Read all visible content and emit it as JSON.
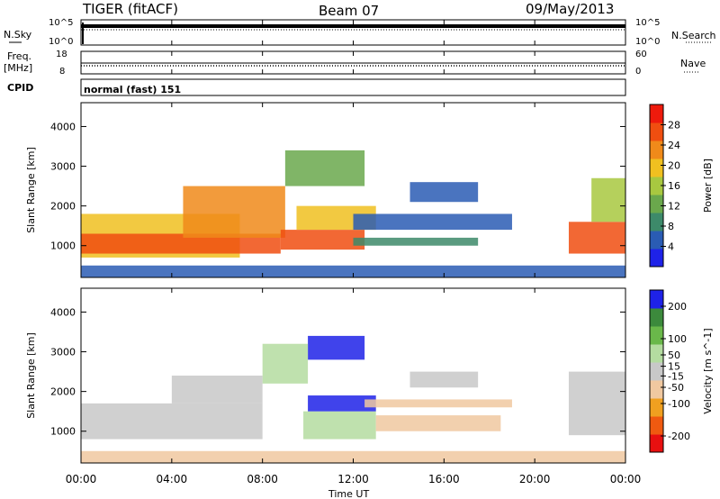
{
  "header": {
    "title": "TIGER (fitACF)",
    "beam": "Beam 07",
    "date": "09/May/2013"
  },
  "nsky_panel": {
    "left_label": "N.Sky",
    "right_label": "N.Search",
    "left_ticks": [
      "10^5",
      "10^0"
    ],
    "right_ticks": [
      "10^5",
      "10^0"
    ]
  },
  "freq_panel": {
    "left_label_1": "Freq.",
    "left_label_2": "[MHz]",
    "right_label": "Nave",
    "left_ticks": [
      "18",
      "8"
    ],
    "right_ticks": [
      "60",
      "0"
    ]
  },
  "cpid": {
    "label": "CPID",
    "value": "normal (fast) 151"
  },
  "x_axis": {
    "label": "Time UT",
    "ticks": [
      "00:00",
      "04:00",
      "08:00",
      "12:00",
      "16:00",
      "20:00",
      "00:00"
    ]
  },
  "colors": {
    "power": [
      "#1e22e8",
      "#2a5cb4",
      "#3d8a6a",
      "#6aa84c",
      "#a8c840",
      "#f0c020",
      "#f08a1a",
      "#f04e10",
      "#ee1a0c"
    ],
    "velocity": [
      "#e81010",
      "#f05a10",
      "#f0a020",
      "#f0c8a0",
      "#c8c8c8",
      "#b4dca0",
      "#6ab84a",
      "#3c8a3c",
      "#1e22e8"
    ]
  },
  "chart_data": [
    {
      "type": "heatmap",
      "title": "Power",
      "ylabel": "Slant Range [km]",
      "xlabel": "",
      "x_unit": "hours UT",
      "xlim": [
        0,
        24
      ],
      "ylim": [
        200,
        4600
      ],
      "y_ticks": [
        1000,
        2000,
        3000,
        4000
      ],
      "colorbar": {
        "label": "Power [dB]",
        "range": [
          0,
          32
        ],
        "ticks": [
          4,
          8,
          12,
          16,
          20,
          24,
          28
        ]
      },
      "regions": [
        {
          "x": [
            0.0,
            7.0
          ],
          "y": [
            700,
            1800
          ],
          "value": 18
        },
        {
          "x": [
            0.0,
            8.8
          ],
          "y": [
            800,
            1300
          ],
          "value": 26
        },
        {
          "x": [
            4.5,
            9.0
          ],
          "y": [
            1200,
            2500
          ],
          "value": 24
        },
        {
          "x": [
            8.8,
            12.5
          ],
          "y": [
            900,
            1400
          ],
          "value": 28
        },
        {
          "x": [
            9.5,
            13.0
          ],
          "y": [
            1400,
            2000
          ],
          "value": 18
        },
        {
          "x": [
            12.0,
            17.5
          ],
          "y": [
            1000,
            1200
          ],
          "value": 10
        },
        {
          "x": [
            12.0,
            19.0
          ],
          "y": [
            1400,
            1800
          ],
          "value": 6
        },
        {
          "x": [
            9.0,
            12.5
          ],
          "y": [
            2500,
            3400
          ],
          "value": 12
        },
        {
          "x": [
            14.5,
            17.5
          ],
          "y": [
            2100,
            2600
          ],
          "value": 4
        },
        {
          "x": [
            21.5,
            24.0
          ],
          "y": [
            800,
            1600
          ],
          "value": 26
        },
        {
          "x": [
            22.5,
            24.0
          ],
          "y": [
            1600,
            2700
          ],
          "value": 16
        },
        {
          "x": [
            0.0,
            24.0
          ],
          "y": [
            200,
            500
          ],
          "value": 6
        }
      ]
    },
    {
      "type": "heatmap",
      "title": "Velocity",
      "ylabel": "Slant Range [km]",
      "xlabel": "Time UT",
      "x_unit": "hours UT",
      "xlim": [
        0,
        24
      ],
      "ylim": [
        200,
        4600
      ],
      "y_ticks": [
        1000,
        2000,
        3000,
        4000
      ],
      "colorbar": {
        "label": "Velocity [m s^-1]",
        "range": [
          -250,
          250
        ],
        "ticks": [
          -200,
          -100,
          -50,
          -15,
          15,
          50,
          100,
          200
        ]
      },
      "regions": [
        {
          "x": [
            0.0,
            8.0
          ],
          "y": [
            800,
            1700
          ],
          "value": 0
        },
        {
          "x": [
            4.0,
            8.0
          ],
          "y": [
            1700,
            2400
          ],
          "value": 0
        },
        {
          "x": [
            9.8,
            13.0
          ],
          "y": [
            800,
            1500
          ],
          "value": 60
        },
        {
          "x": [
            13.0,
            18.5
          ],
          "y": [
            1000,
            1400
          ],
          "value": -60
        },
        {
          "x": [
            10.0,
            13.0
          ],
          "y": [
            1500,
            1900
          ],
          "value": 200
        },
        {
          "x": [
            12.5,
            19.0
          ],
          "y": [
            1600,
            1800
          ],
          "value": -50
        },
        {
          "x": [
            10.0,
            12.5
          ],
          "y": [
            2800,
            3400
          ],
          "value": 200
        },
        {
          "x": [
            8.0,
            10.0
          ],
          "y": [
            2200,
            3200
          ],
          "value": 60
        },
        {
          "x": [
            14.5,
            17.5
          ],
          "y": [
            2100,
            2500
          ],
          "value": 0
        },
        {
          "x": [
            21.5,
            24.0
          ],
          "y": [
            900,
            2500
          ],
          "value": 0
        },
        {
          "x": [
            0.0,
            24.0
          ],
          "y": [
            200,
            500
          ],
          "value": -60
        }
      ]
    }
  ]
}
